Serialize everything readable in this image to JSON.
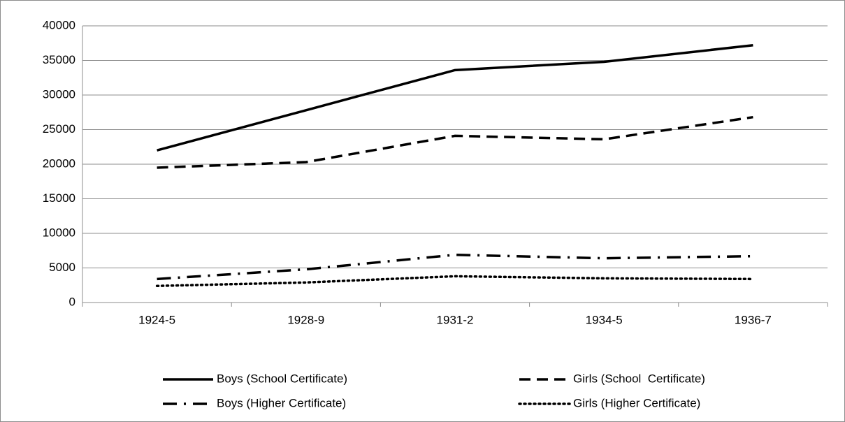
{
  "chart_data": {
    "type": "line",
    "categories": [
      "1924-5",
      "1928-9",
      "1931-2",
      "1934-5",
      "1936-7"
    ],
    "series": [
      {
        "name": "Boys (School Certificate)",
        "color": "#000000",
        "dash": "solid",
        "values": [
          22000,
          27800,
          33600,
          34800,
          37200
        ]
      },
      {
        "name": "Girls (School  Certificate)",
        "color": "#000000",
        "dash": "dashed",
        "values": [
          19500,
          20300,
          24100,
          23600,
          26800
        ]
      },
      {
        "name": "Boys (Higher Certificate)",
        "color": "#000000",
        "dash": "dash-dot",
        "values": [
          3400,
          4800,
          6900,
          6400,
          6700
        ]
      },
      {
        "name": "Girls (Higher Certificate)",
        "color": "#000000",
        "dash": "dotted",
        "values": [
          2400,
          2900,
          3800,
          3500,
          3400
        ]
      }
    ],
    "ylim": [
      0,
      40000
    ],
    "yticks": [
      0,
      5000,
      10000,
      15000,
      20000,
      25000,
      30000,
      35000,
      40000
    ],
    "grid": true,
    "legend": "bottom"
  }
}
